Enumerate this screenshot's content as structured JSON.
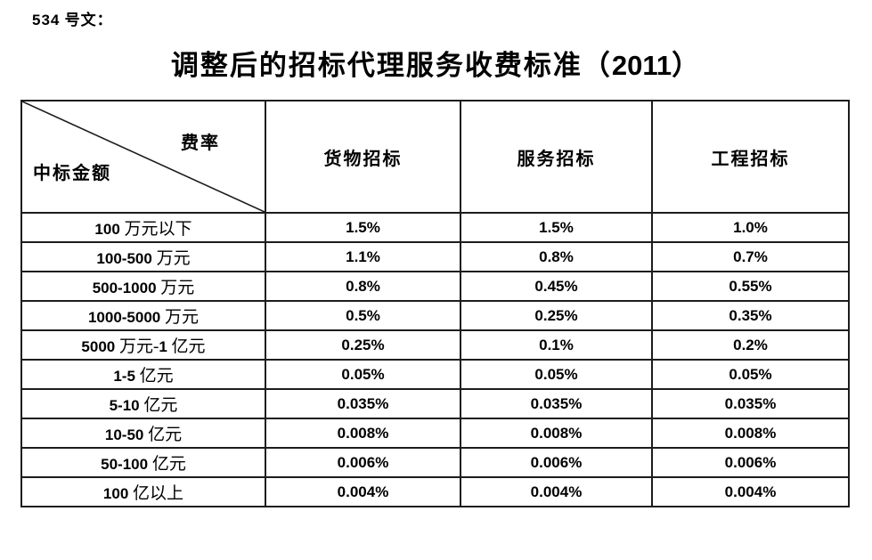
{
  "page": {
    "doc_ref": "534 号文：",
    "title": "调整后的招标代理服务收费标准（2011）"
  },
  "table": {
    "corner": {
      "top_right": "费率",
      "bottom_left": "中标金额"
    },
    "columns": [
      "货物招标",
      "服务招标",
      "工程招标"
    ],
    "rows": [
      {
        "label": "100 万元以下",
        "values": [
          "1.5%",
          "1.5%",
          "1.0%"
        ]
      },
      {
        "label": "100-500 万元",
        "values": [
          "1.1%",
          "0.8%",
          "0.7%"
        ]
      },
      {
        "label": "500-1000 万元",
        "values": [
          "0.8%",
          "0.45%",
          "0.55%"
        ]
      },
      {
        "label": "1000-5000 万元",
        "values": [
          "0.5%",
          "0.25%",
          "0.35%"
        ]
      },
      {
        "label": "5000 万元-1 亿元",
        "values": [
          "0.25%",
          "0.1%",
          "0.2%"
        ]
      },
      {
        "label": "1-5 亿元",
        "values": [
          "0.05%",
          "0.05%",
          "0.05%"
        ]
      },
      {
        "label": "5-10 亿元",
        "values": [
          "0.035%",
          "0.035%",
          "0.035%"
        ]
      },
      {
        "label": "10-50 亿元",
        "values": [
          "0.008%",
          "0.008%",
          "0.008%"
        ]
      },
      {
        "label": "50-100 亿元",
        "values": [
          "0.006%",
          "0.006%",
          "0.006%"
        ]
      },
      {
        "label": "100 亿以上",
        "values": [
          "0.004%",
          "0.004%",
          "0.004%"
        ]
      }
    ]
  },
  "colors": {
    "text": "#000000",
    "border": "#1c1c1c",
    "background": "#ffffff"
  }
}
